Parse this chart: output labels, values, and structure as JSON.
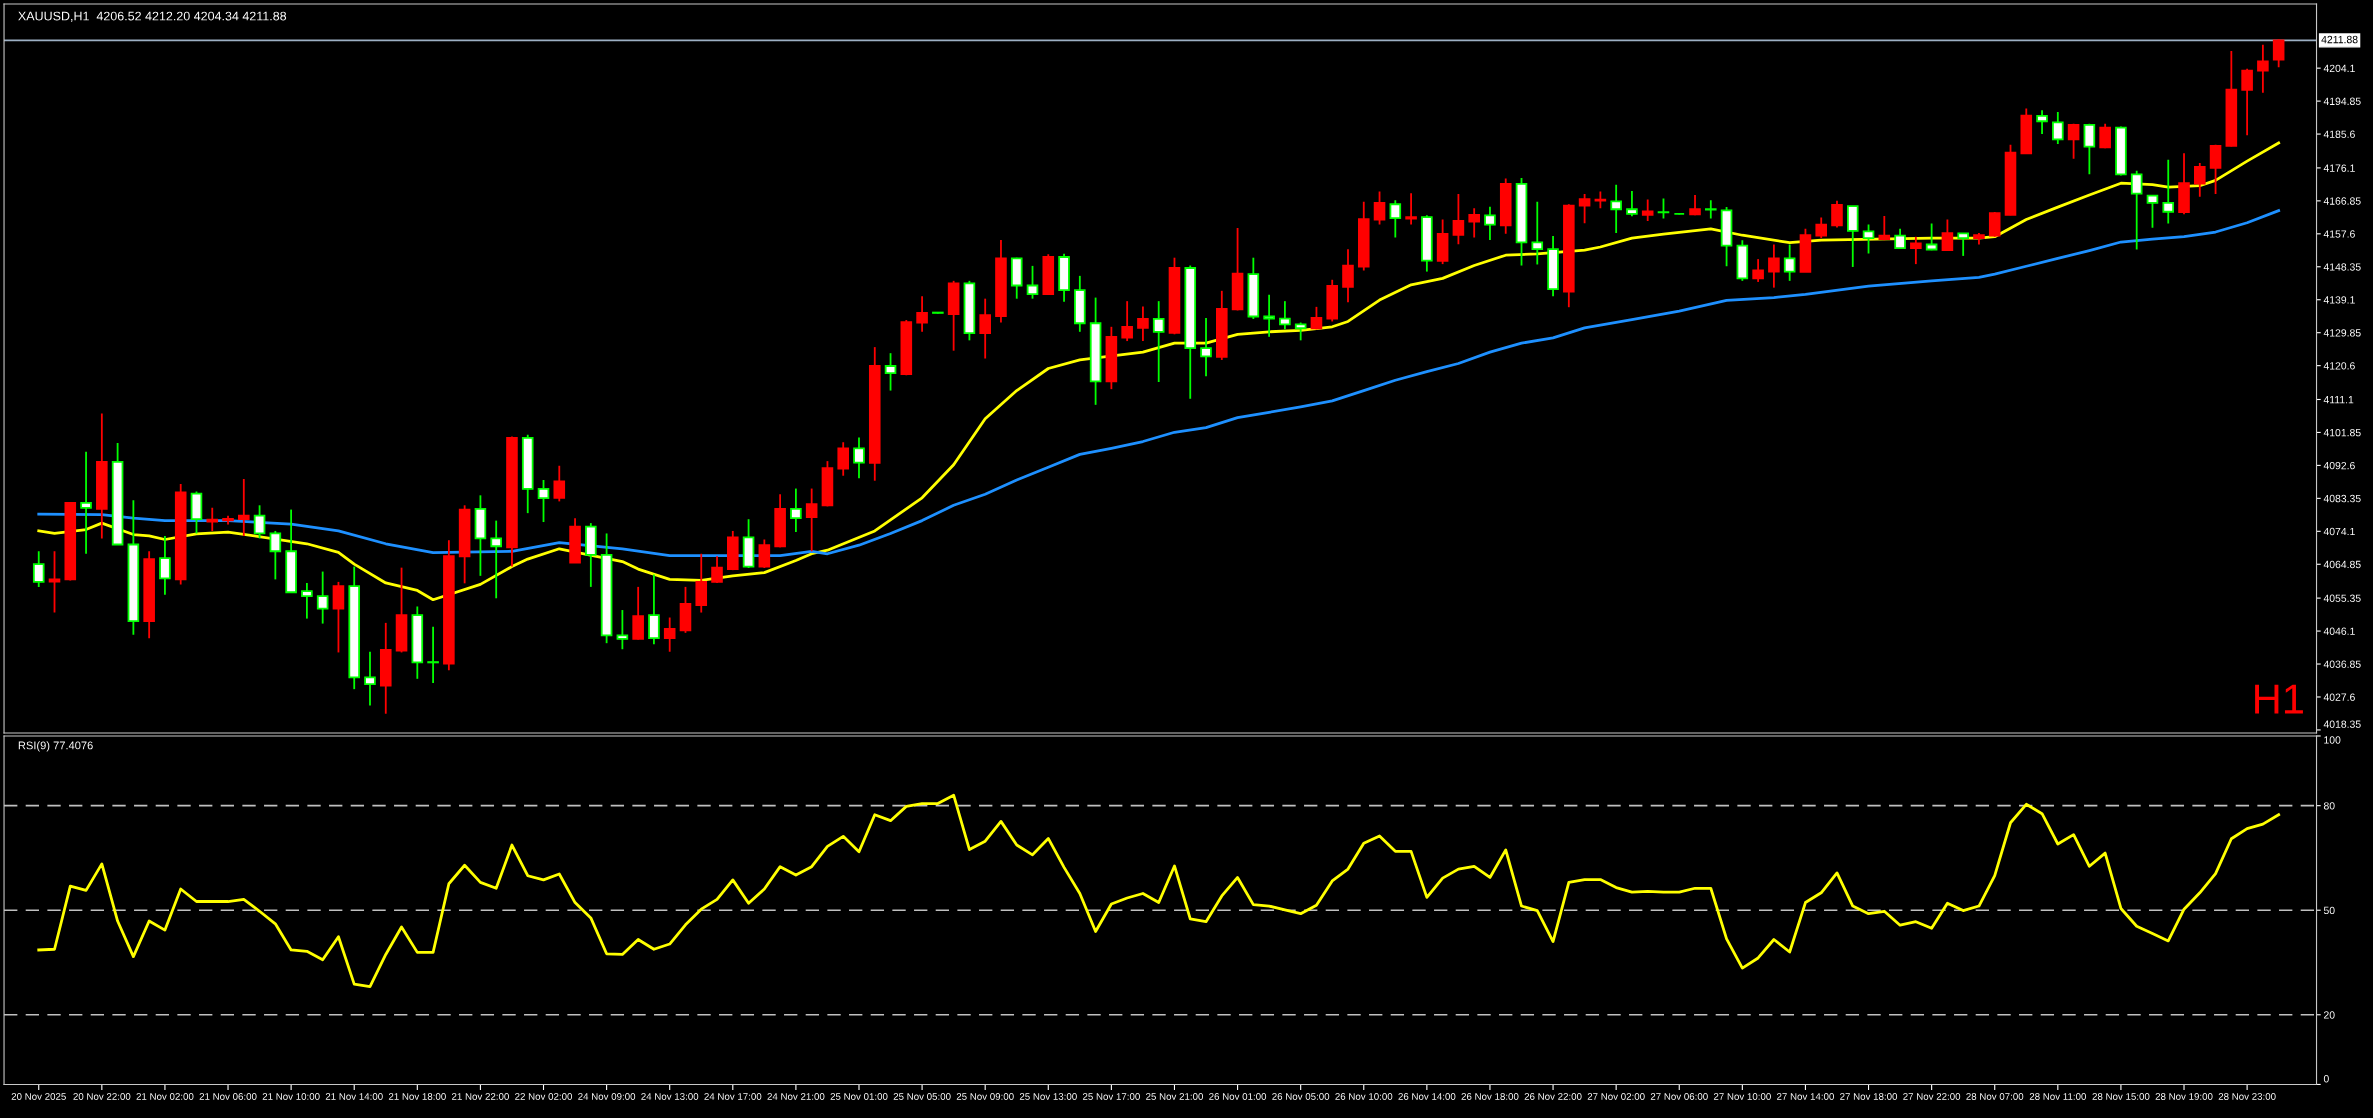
{
  "chart_data": [
    {
      "type": "candlestick",
      "title": "XAUUSD,H1  4206.52 4212.20 4204.34 4211.88",
      "annotations": [
        "H1"
      ],
      "tick_labels": "y",
      "colors": [
        "#ffffff",
        "#ff0000",
        "#ff0000",
        "#ffffff",
        "#ff0000",
        "#ffffff",
        "#ffffff",
        "#ff0000",
        "#ffffff",
        "#ff0000",
        "#ffffff",
        "#ff0000",
        "#ff0000",
        "#ff0000",
        "#ffffff",
        "#ffffff",
        "#ffffff",
        "#ffffff",
        "#ffffff",
        "#ff0000",
        "#ffffff",
        "#ffffff",
        "#ff0000",
        "#ff0000",
        "#ffffff",
        "#ffffff",
        "#ff0000",
        "#ff0000",
        "#ffffff",
        "#ffffff",
        "#ff0000",
        "#ffffff",
        "#ffffff",
        "#ff0000",
        "#ff0000",
        "#ffffff",
        "#ffffff",
        "#ffffff",
        "#ff0000",
        "#ffffff",
        "#ff0000",
        "#ff0000",
        "#ff0000",
        "#ff0000",
        "#ff0000",
        "#ffffff",
        "#ff0000",
        "#ff0000",
        "#ffffff",
        "#ff0000",
        "#ff0000",
        "#ff0000",
        "#ffffff",
        "#ff0000",
        "#ffffff",
        "#ff0000",
        "#ff0000",
        "#ffffff",
        "#ff0000",
        "#ffffff",
        "#ff0000",
        "#ff0000",
        "#ffffff",
        "#ffffff",
        "#ff0000",
        "#ffffff",
        "#ffffff",
        "#ffffff",
        "#ff0000",
        "#ff0000",
        "#ff0000",
        "#ffffff",
        "#ff0000",
        "#ffffff",
        "#ffffff",
        "#ff0000",
        "#ff0000",
        "#ffffff",
        "#ffffff",
        "#ffffff",
        "#ffffff",
        "#ff0000",
        "#ff0000",
        "#ff0000",
        "#ff0000",
        "#ff0000",
        "#ffffff",
        "#ff0000",
        "#ffffff",
        "#ff0000",
        "#ff0000",
        "#ff0000",
        "#ffffff",
        "#ff0000",
        "#ffffff",
        "#ffffff",
        "#ffffff",
        "#ff0000",
        "#ff0000",
        "#ff0000",
        "#ffffff",
        "#ffffff",
        "#ff0000",
        "#ffffff",
        "#00ff00",
        "#ff0000",
        "#ffffff",
        "#ffffff",
        "#ffffff",
        "#ff0000",
        "#ff0000",
        "#ffffff",
        "#ff0000",
        "#ff0000",
        "#ff0000",
        "#ffffff",
        "#ffffff",
        "#ff0000",
        "#ffffff",
        "#ff0000",
        "#ffffff",
        "#ff0000",
        "#ffffff",
        "#ff0000",
        "#ff0000",
        "#ff0000",
        "#ff0000",
        "#ffffff",
        "#ffffff",
        "#ff0000",
        "#ffffff",
        "#ff0000",
        "#ffffff",
        "#ffffff",
        "#ffffff",
        "#ffffff",
        "#ff0000",
        "#ff0000",
        "#ff0000",
        "#ff0000",
        "#ff0000",
        "#ff0000",
        "#ff0000"
      ],
      "categories": [
        null,
        null,
        null,
        null,
        null,
        null,
        null,
        null,
        null,
        null,
        null,
        null,
        null,
        null,
        null,
        null,
        null,
        null,
        null,
        null,
        null,
        null,
        null,
        null,
        null,
        null,
        null,
        null,
        null,
        null,
        null,
        null,
        null,
        null,
        null,
        null,
        null,
        null,
        null,
        null,
        null,
        null,
        null,
        null,
        null,
        null,
        null,
        null,
        null,
        null,
        null,
        null,
        null,
        null,
        null,
        null,
        null,
        null,
        null,
        null,
        null,
        null,
        null,
        null,
        null,
        null,
        null,
        null,
        null,
        null,
        null,
        null,
        null,
        null,
        null,
        null,
        null,
        null,
        null,
        null,
        null,
        null,
        null,
        null,
        null,
        null,
        null,
        null,
        null,
        null,
        null,
        null,
        null,
        null,
        null,
        null,
        null,
        null,
        null,
        null,
        null,
        null,
        null,
        null,
        null,
        null,
        null,
        null,
        null,
        null,
        null,
        null,
        null,
        null,
        null,
        null,
        null,
        null,
        null,
        null,
        null,
        null,
        null,
        null,
        null,
        null,
        null,
        null,
        null,
        null,
        null,
        null,
        null,
        null,
        null,
        null,
        null,
        null,
        null,
        null,
        null,
        null,
        null
      ],
      "ylim": [
        4017.5,
        4222.1
      ],
      "yticks": [
        4018.35,
        4027.6,
        4036.85,
        4046.1,
        4055.35,
        4064.85,
        4074.1,
        4083.35,
        4092.6,
        4101.85,
        4111.1,
        4120.6,
        4129.85,
        4139.1,
        4148.35,
        4157.6,
        4166.85,
        4176.1,
        4185.6,
        4194.85,
        4204.1
      ],
      "ref_lines": [
        {
          "axis": "y",
          "value": 4211.88,
          "label": "4211.88",
          "color": "#9db0c4"
        }
      ],
      "ohlc": [
        [
          4064.9,
          4068.5,
          4058.5,
          4059.9
        ],
        [
          4060.0,
          4068.5,
          4051.3,
          4060.6
        ],
        [
          4060.6,
          4082.1,
          4060.3,
          4082.1
        ],
        [
          4082.1,
          4096.4,
          4067.8,
          4080.7
        ],
        [
          4080.4,
          4107.2,
          4072.1,
          4093.6
        ],
        [
          4093.6,
          4098.9,
          4070.4,
          4070.4
        ],
        [
          4070.4,
          4082.8,
          4045.1,
          4048.9
        ],
        [
          4048.9,
          4068.5,
          4044.1,
          4066.3
        ],
        [
          4066.6,
          4072.8,
          4056.3,
          4060.9
        ],
        [
          4060.6,
          4087.4,
          4059.2,
          4085.0
        ],
        [
          4084.7,
          4085.3,
          4073.5,
          4077.5
        ],
        [
          4076.8,
          4080.7,
          4074.2,
          4077.4
        ],
        [
          4077.2,
          4078.5,
          4076.0,
          4077.6
        ],
        [
          4077.5,
          4088.8,
          4072.8,
          4078.5
        ],
        [
          4078.5,
          4081.4,
          4072.1,
          4073.5
        ],
        [
          4073.5,
          4074.2,
          4060.6,
          4068.5
        ],
        [
          4068.5,
          4080.2,
          4057.0,
          4057.0
        ],
        [
          4057.3,
          4059.6,
          4049.6,
          4055.9
        ],
        [
          4055.9,
          4062.8,
          4048.2,
          4052.4
        ],
        [
          4052.4,
          4059.9,
          4040.1,
          4058.7
        ],
        [
          4058.7,
          4064.2,
          4029.8,
          4033.1
        ],
        [
          4033.1,
          4040.3,
          4025.2,
          4031.2
        ],
        [
          4030.8,
          4048.4,
          4022.9,
          4040.8
        ],
        [
          4040.6,
          4063.9,
          4040.1,
          4050.6
        ],
        [
          4050.6,
          4053.0,
          4032.7,
          4037.3
        ],
        [
          4037.4,
          4047.3,
          4031.5,
          4037.3
        ],
        [
          4037.0,
          4071.6,
          4035.1,
          4067.1
        ],
        [
          4067.1,
          4081.4,
          4059.5,
          4080.2
        ],
        [
          4080.4,
          4084.2,
          4061.6,
          4072.1
        ],
        [
          4072.1,
          4077.1,
          4055.3,
          4069.9
        ],
        [
          4069.6,
          4100.7,
          4064.2,
          4100.3
        ],
        [
          4100.3,
          4101.2,
          4079.2,
          4086.0
        ],
        [
          4086.0,
          4088.5,
          4076.7,
          4083.4
        ],
        [
          4083.5,
          4092.5,
          4082.5,
          4088.1
        ],
        [
          4065.3,
          4077.8,
          4065.3,
          4075.4
        ],
        [
          4075.4,
          4076.4,
          4058.5,
          4067.5
        ],
        [
          4067.5,
          4073.5,
          4042.7,
          4044.9
        ],
        [
          4044.9,
          4052.0,
          4041.0,
          4043.9
        ],
        [
          4043.9,
          4058.5,
          4043.7,
          4050.3
        ],
        [
          4050.6,
          4062.0,
          4042.4,
          4044.1
        ],
        [
          4044.1,
          4049.9,
          4040.3,
          4046.7
        ],
        [
          4046.3,
          4058.5,
          4045.6,
          4053.7
        ],
        [
          4053.4,
          4067.8,
          4051.3,
          4059.9
        ],
        [
          4059.9,
          4067.1,
          4059.6,
          4063.9
        ],
        [
          4063.5,
          4074.2,
          4063.2,
          4072.4
        ],
        [
          4072.4,
          4077.5,
          4063.8,
          4064.2
        ],
        [
          4064.2,
          4071.8,
          4063.8,
          4070.2
        ],
        [
          4069.9,
          4084.5,
          4069.6,
          4080.4
        ],
        [
          4080.4,
          4086.1,
          4073.9,
          4077.8
        ],
        [
          4078.1,
          4086.1,
          4068.5,
          4081.7
        ],
        [
          4081.4,
          4093.8,
          4081.1,
          4091.8
        ],
        [
          4091.7,
          4099.1,
          4089.7,
          4097.4
        ],
        [
          4097.4,
          4100.4,
          4089.0,
          4093.4
        ],
        [
          4093.3,
          4125.8,
          4088.3,
          4120.5
        ],
        [
          4120.5,
          4124.1,
          4113.6,
          4118.5
        ],
        [
          4118.2,
          4133.4,
          4117.9,
          4132.8
        ],
        [
          4132.7,
          4140.1,
          4130.1,
          4135.4
        ],
        [
          4135.4,
          4135.6,
          4135.2,
          4135.5
        ],
        [
          4135.1,
          4144.4,
          4124.8,
          4143.7
        ],
        [
          4143.7,
          4144.4,
          4127.7,
          4129.7
        ],
        [
          4129.7,
          4139.4,
          4122.6,
          4134.8
        ],
        [
          4134.5,
          4155.9,
          4132.7,
          4150.7
        ],
        [
          4150.7,
          4150.9,
          4139.4,
          4143.1
        ],
        [
          4143.1,
          4148.6,
          4139.4,
          4140.7
        ],
        [
          4140.7,
          4151.9,
          4140.6,
          4151.1
        ],
        [
          4151.1,
          4152.0,
          4138.5,
          4141.8
        ],
        [
          4141.8,
          4145.8,
          4130.1,
          4132.5
        ],
        [
          4132.5,
          4139.7,
          4109.6,
          4116.2
        ],
        [
          4116.2,
          4131.5,
          4114.0,
          4128.7
        ],
        [
          4128.5,
          4138.7,
          4127.5,
          4131.5
        ],
        [
          4131.2,
          4137.2,
          4127.5,
          4133.7
        ],
        [
          4133.7,
          4138.7,
          4116.0,
          4130.1
        ],
        [
          4129.8,
          4150.9,
          4129.4,
          4148.0
        ],
        [
          4148.0,
          4148.7,
          4111.3,
          4125.5
        ],
        [
          4125.5,
          4134.0,
          4117.6,
          4123.2
        ],
        [
          4123.1,
          4141.6,
          4122.2,
          4136.5
        ],
        [
          4136.4,
          4159.2,
          4136.1,
          4146.4
        ],
        [
          4146.3,
          4150.9,
          4133.7,
          4134.4
        ],
        [
          4134.4,
          4140.5,
          4128.7,
          4133.8
        ],
        [
          4133.8,
          4138.7,
          4130.8,
          4132.2
        ],
        [
          4132.2,
          4132.7,
          4127.7,
          4131.1
        ],
        [
          4131.1,
          4137.1,
          4130.8,
          4134.0
        ],
        [
          4133.8,
          4144.7,
          4133.0,
          4143.0
        ],
        [
          4142.7,
          4153.3,
          4138.4,
          4148.7
        ],
        [
          4148.4,
          4166.6,
          4147.3,
          4161.7
        ],
        [
          4161.6,
          4169.5,
          4160.2,
          4166.3
        ],
        [
          4165.9,
          4167.0,
          4156.6,
          4162.0
        ],
        [
          4161.9,
          4169.0,
          4160.2,
          4162.3
        ],
        [
          4162.3,
          4162.8,
          4147.0,
          4150.1
        ],
        [
          4150.0,
          4161.6,
          4149.1,
          4157.6
        ],
        [
          4157.3,
          4168.8,
          4154.7,
          4161.2
        ],
        [
          4161.0,
          4164.8,
          4156.6,
          4162.9
        ],
        [
          4162.8,
          4165.2,
          4155.9,
          4160.2
        ],
        [
          4160.0,
          4173.1,
          4157.6,
          4171.6
        ],
        [
          4171.6,
          4173.3,
          4148.7,
          4155.2
        ],
        [
          4155.2,
          4166.6,
          4149.0,
          4153.3
        ],
        [
          4153.3,
          4157.0,
          4140.1,
          4142.1
        ],
        [
          4141.4,
          4165.9,
          4137.0,
          4165.5
        ],
        [
          4165.5,
          4168.8,
          4160.6,
          4167.3
        ],
        [
          4166.9,
          4169.5,
          4164.8,
          4167.2
        ],
        [
          4166.7,
          4171.4,
          4157.8,
          4164.5
        ],
        [
          4164.5,
          4169.6,
          4162.5,
          4163.2
        ],
        [
          4162.9,
          4167.2,
          4161.2,
          4163.9
        ],
        [
          4163.7,
          4167.5,
          4161.9,
          4163.6
        ],
        [
          4163.2,
          4163.4,
          4163.0,
          4163.2
        ],
        [
          4163.1,
          4168.5,
          4162.8,
          4164.5
        ],
        [
          4164.5,
          4167.0,
          4161.9,
          4164.4
        ],
        [
          4164.2,
          4165.1,
          4148.5,
          4154.3
        ],
        [
          4154.3,
          4155.8,
          4144.4,
          4145.1
        ],
        [
          4145.1,
          4150.5,
          4144.1,
          4147.3
        ],
        [
          4147.0,
          4154.6,
          4142.5,
          4150.7
        ],
        [
          4150.7,
          4154.6,
          4144.4,
          4147.0
        ],
        [
          4146.9,
          4159.0,
          4146.9,
          4157.2
        ],
        [
          4157.1,
          4162.2,
          4156.4,
          4160.2
        ],
        [
          4160.0,
          4166.9,
          4159.4,
          4165.7
        ],
        [
          4165.4,
          4165.4,
          4148.3,
          4158.4
        ],
        [
          4158.3,
          4160.2,
          4152.1,
          4156.4
        ],
        [
          4156.1,
          4162.6,
          4155.8,
          4157.1
        ],
        [
          4157.1,
          4159.0,
          4153.4,
          4153.6
        ],
        [
          4153.6,
          4156.8,
          4149.1,
          4154.9
        ],
        [
          4154.6,
          4160.5,
          4153.0,
          4153.2
        ],
        [
          4153.0,
          4161.6,
          4152.9,
          4157.8
        ],
        [
          4157.7,
          4157.8,
          4151.4,
          4156.4
        ],
        [
          4156.4,
          4157.8,
          4154.6,
          4157.2
        ],
        [
          4157.1,
          4163.7,
          4156.8,
          4163.4
        ],
        [
          4162.9,
          4182.6,
          4162.8,
          4180.4
        ],
        [
          4180.2,
          4192.8,
          4180.0,
          4190.8
        ],
        [
          4190.7,
          4192.3,
          4185.6,
          4189.2
        ],
        [
          4188.9,
          4191.8,
          4182.8,
          4184.1
        ],
        [
          4184.1,
          4188.5,
          4178.7,
          4188.2
        ],
        [
          4188.2,
          4188.5,
          4174.3,
          4182.1
        ],
        [
          4181.9,
          4188.5,
          4181.6,
          4187.4
        ],
        [
          4187.4,
          4187.7,
          4174.0,
          4174.3
        ],
        [
          4174.3,
          4175.3,
          4153.2,
          4168.9
        ],
        [
          4168.3,
          4168.5,
          4159.3,
          4166.3
        ],
        [
          4166.3,
          4178.4,
          4160.5,
          4163.8
        ],
        [
          4163.7,
          4180.2,
          4163.1,
          4171.8
        ],
        [
          4171.7,
          4177.5,
          4168.0,
          4176.4
        ],
        [
          4176.1,
          4182.6,
          4168.8,
          4182.3
        ],
        [
          4182.3,
          4208.9,
          4182.1,
          4198.1
        ],
        [
          4198.0,
          4203.9,
          4185.3,
          4203.4
        ],
        [
          4203.4,
          4210.7,
          4197.2,
          4206.0
        ],
        [
          4206.52,
          4212.2,
          4204.34,
          4211.88
        ]
      ],
      "series": [
        {
          "type": "line",
          "color": "#ffff00",
          "values": [
            4074.2,
            4073.5,
            null,
            4074.6,
            4076.4,
            null,
            4073.2,
            4072.8,
            4071.8,
            null,
            4073.4,
            null,
            4073.9,
            null,
            null,
            null,
            null,
            4070.6,
            null,
            4068.2,
            4064.9,
            null,
            4059.6,
            null,
            4057.5,
            4054.9,
            null,
            null,
            4059.2,
            null,
            4064.2,
            4066.3,
            null,
            4069.2,
            null,
            null,
            null,
            4065.6,
            4063.5,
            null,
            4060.6,
            null,
            4060.3,
            null,
            4061.6,
            null,
            4062.5,
            null,
            4065.9,
            4067.8,
            4068.8,
            null,
            null,
            4074.2,
            null,
            null,
            4083.5,
            null,
            4092.8,
            null,
            4105.7,
            null,
            4113.6,
            null,
            4119.8,
            null,
            4122.2,
            null,
            null,
            null,
            4124.4,
            null,
            4126.9,
            null,
            4126.9,
            null,
            4129.4,
            null,
            4130.1,
            null,
            4130.5,
            null,
            4131.5,
            4133.0,
            null,
            4139.0,
            null,
            4143.3,
            null,
            4145.1,
            null,
            4148.7,
            null,
            4151.6,
            null,
            4152.0,
            null,
            null,
            4153.0,
            4153.9,
            null,
            4156.4,
            null,
            4157.5,
            null,
            null,
            4159.0,
            null,
            4157.2,
            null,
            null,
            4155.1,
            null,
            4155.8,
            null,
            null,
            null,
            null,
            null,
            null,
            4156.4,
            null,
            null,
            4156.4,
            4156.8,
            null,
            4161.6,
            null,
            4165.1,
            null,
            4168.5,
            null,
            4171.8,
            null,
            4171.4,
            4170.7,
            null,
            4171.1,
            4172.6,
            null,
            4178.0,
            null,
            4183.1
          ]
        },
        {
          "type": "line",
          "color": "#1e90ff",
          "values": [
            4078.9,
            null,
            null,
            null,
            4078.8,
            null,
            4077.8,
            null,
            4077.1,
            null,
            null,
            null,
            4077.1,
            null,
            null,
            null,
            4076.1,
            null,
            null,
            4074.2,
            null,
            null,
            4070.6,
            null,
            null,
            4068.1,
            null,
            null,
            null,
            null,
            4068.5,
            null,
            null,
            4070.9,
            null,
            null,
            null,
            4069.2,
            null,
            null,
            4067.3,
            null,
            null,
            null,
            null,
            null,
            null,
            4067.3,
            null,
            4068.5,
            4067.8,
            null,
            4070.2,
            null,
            4073.5,
            null,
            4077.1,
            null,
            4081.4,
            null,
            4084.5,
            null,
            4088.5,
            null,
            4092.1,
            null,
            4095.7,
            null,
            4097.4,
            null,
            4099.3,
            null,
            4101.9,
            null,
            4103.2,
            null,
            4106.0,
            null,
            4107.5,
            null,
            4109.0,
            null,
            4110.7,
            null,
            4113.6,
            null,
            4116.5,
            null,
            4118.9,
            null,
            4121.2,
            null,
            4124.4,
            null,
            4126.9,
            null,
            4128.4,
            null,
            4131.2,
            null,
            null,
            4133.5,
            null,
            null,
            4135.9,
            null,
            null,
            4138.9,
            null,
            null,
            4139.7,
            null,
            4140.6,
            null,
            null,
            null,
            4142.9,
            null,
            null,
            null,
            4144.4,
            null,
            null,
            4145.4,
            4146.3,
            null,
            4148.5,
            null,
            4150.7,
            null,
            4152.9,
            null,
            4155.3,
            null,
            4156.1,
            null,
            4156.8,
            null,
            4158.1,
            null,
            4160.7,
            null,
            4164.1
          ]
        }
      ]
    },
    {
      "type": "line",
      "title": "RSI(9) 77.4076",
      "color": "#ffff00",
      "categories": [
        "20 Nov 2025",
        null,
        null,
        null,
        "20 Nov 22:00",
        null,
        null,
        null,
        "21 Nov 02:00",
        null,
        null,
        null,
        "21 Nov 06:00",
        null,
        null,
        null,
        "21 Nov 10:00",
        null,
        null,
        null,
        "21 Nov 14:00",
        null,
        null,
        null,
        "21 Nov 18:00",
        null,
        null,
        null,
        "21 Nov 22:00",
        null,
        null,
        null,
        "22 Nov 02:00",
        null,
        null,
        null,
        "24 Nov 09:00",
        null,
        null,
        null,
        "24 Nov 13:00",
        null,
        null,
        null,
        "24 Nov 17:00",
        null,
        null,
        null,
        "24 Nov 21:00",
        null,
        null,
        null,
        "25 Nov 01:00",
        null,
        null,
        null,
        "25 Nov 05:00",
        null,
        null,
        null,
        "25 Nov 09:00",
        null,
        null,
        null,
        "25 Nov 13:00",
        null,
        null,
        null,
        "25 Nov 17:00",
        null,
        null,
        null,
        "25 Nov 21:00",
        null,
        null,
        null,
        "26 Nov 01:00",
        null,
        null,
        null,
        "26 Nov 05:00",
        null,
        null,
        null,
        "26 Nov 10:00",
        null,
        null,
        null,
        "26 Nov 14:00",
        null,
        null,
        null,
        "26 Nov 18:00",
        null,
        null,
        null,
        "26 Nov 22:00",
        null,
        null,
        null,
        "27 Nov 02:00",
        null,
        null,
        null,
        "27 Nov 06:00",
        null,
        null,
        null,
        "27 Nov 10:00",
        null,
        null,
        null,
        "27 Nov 14:00",
        null,
        null,
        null,
        "27 Nov 18:00",
        null,
        null,
        null,
        "27 Nov 22:00",
        null,
        null,
        null,
        "28 Nov 07:00",
        null,
        null,
        null,
        "28 Nov 11:00",
        null,
        null,
        null,
        "28 Nov 15:00",
        null,
        null,
        null,
        "28 Nov 19:00",
        null,
        null,
        null,
        "28 Nov 23:00",
        null,
        null
      ],
      "values": [
        38.6,
        38.8,
        56.9,
        55.7,
        63.3,
        46.9,
        36.7,
        46.9,
        44.3,
        56.1,
        52.5,
        52.5,
        52.5,
        53.1,
        49.7,
        46.1,
        38.6,
        38.2,
        35.8,
        42.4,
        28.8,
        28.1,
        37.3,
        45.2,
        37.9,
        37.9,
        57.6,
        62.9,
        58.0,
        56.3,
        68.7,
        59.9,
        58.7,
        60.4,
        52.2,
        47.8,
        37.5,
        37.3,
        41.6,
        38.8,
        40.3,
        45.8,
        50.3,
        53.1,
        58.7,
        52.0,
        56.1,
        62.5,
        60.1,
        62.5,
        68.3,
        71.2,
        66.8,
        77.4,
        75.7,
        79.8,
        80.6,
        80.6,
        83.0,
        67.4,
        69.8,
        75.5,
        68.7,
        65.9,
        70.6,
        62.3,
        54.8,
        43.9,
        51.8,
        53.5,
        54.8,
        52.2,
        62.7,
        47.5,
        46.7,
        54.1,
        59.4,
        51.6,
        51.2,
        50.1,
        49.0,
        51.4,
        58.4,
        61.8,
        69.2,
        71.3,
        66.9,
        66.9,
        53.7,
        59.2,
        61.8,
        62.6,
        59.4,
        67.3,
        51.2,
        49.9,
        41.0,
        58.0,
        58.8,
        58.8,
        56.5,
        55.2,
        55.4,
        55.2,
        55.2,
        56.3,
        56.3,
        41.8,
        33.4,
        36.3,
        41.6,
        38.0,
        52.2,
        55.0,
        60.7,
        51.2,
        49.0,
        49.7,
        45.7,
        46.7,
        44.8,
        52.0,
        49.9,
        51.2,
        59.9,
        75.1,
        80.4,
        77.7,
        69.0,
        71.7,
        62.6,
        66.4,
        50.5,
        45.4,
        43.3,
        41.2,
        50.3,
        55.0,
        60.5,
        70.5,
        73.4,
        74.7,
        77.4
      ],
      "ylim": [
        0,
        100
      ],
      "yticks": [
        0,
        20,
        50,
        80,
        100
      ],
      "ref_lines": [
        {
          "axis": "y",
          "value": 80,
          "color": "#c0c0c0",
          "line_style": "dashed"
        },
        {
          "axis": "y",
          "value": 50,
          "color": "#c0c0c0",
          "line_style": "dashed"
        },
        {
          "axis": "y",
          "value": 20,
          "color": "#c0c0c0",
          "line_style": "dashed"
        }
      ]
    }
  ]
}
